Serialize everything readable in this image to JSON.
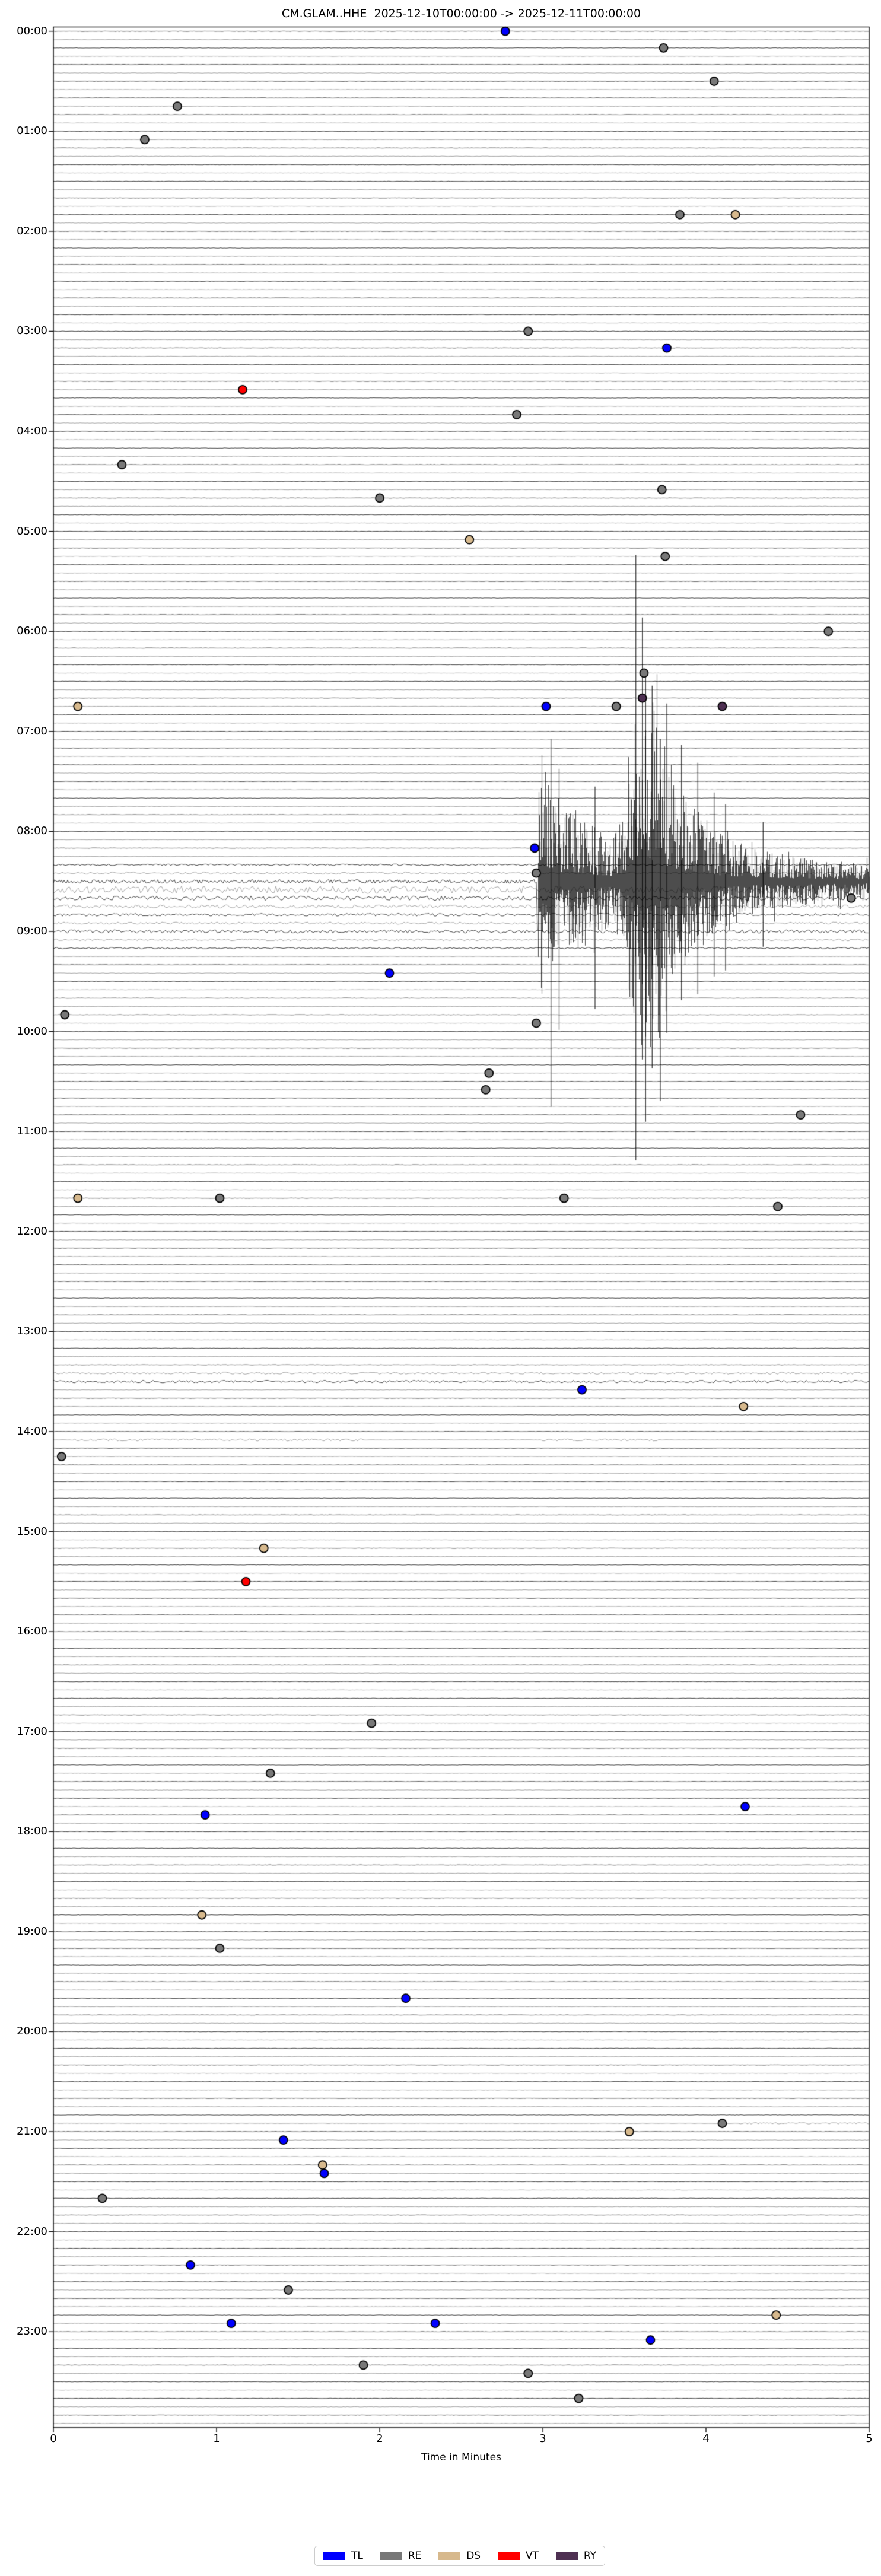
{
  "figure": {
    "title": "CM.GLAM..HHE  2025-12-10T00:00:00 -> 2025-12-11T00:00:00",
    "xlabel": "Time in Minutes"
  },
  "chart_data": {
    "type": "line",
    "subtype": "helicorder-seismogram-dayplot",
    "title": "CM.GLAM..HHE  2025-12-10T00:00:00 -> 2025-12-11T00:00:00",
    "xlabel": "Time in Minutes",
    "ylabel": "",
    "x_range": [
      0,
      5
    ],
    "minutes_per_row": 5,
    "rows": 288,
    "grid": false,
    "legend_position": "bottom-center",
    "x_ticks": [
      "0",
      "1",
      "2",
      "3",
      "4",
      "5"
    ],
    "y_ticks": [
      "00:00",
      "01:00",
      "02:00",
      "03:00",
      "04:00",
      "05:00",
      "06:00",
      "07:00",
      "08:00",
      "09:00",
      "10:00",
      "11:00",
      "12:00",
      "13:00",
      "14:00",
      "15:00",
      "16:00",
      "17:00",
      "18:00",
      "19:00",
      "20:00",
      "21:00",
      "22:00",
      "23:00"
    ],
    "legend": [
      {
        "label": "TL",
        "color": "#0000ff"
      },
      {
        "label": "RE",
        "color": "#787878"
      },
      {
        "label": "DS",
        "color": "#d7b98d"
      },
      {
        "label": "VT",
        "color": "#ff0000"
      },
      {
        "label": "RY",
        "color": "#4e3052"
      }
    ],
    "trace_color_dark": "#2f2f2f",
    "trace_color_light": "#8f8f8f",
    "events": [
      {
        "time": "00:00",
        "minute": 2.77,
        "type": "TL"
      },
      {
        "time": "00:10",
        "minute": 3.74,
        "type": "RE"
      },
      {
        "time": "00:30",
        "minute": 4.05,
        "type": "RE"
      },
      {
        "time": "00:45",
        "minute": 0.76,
        "type": "RE"
      },
      {
        "time": "01:05",
        "minute": 0.56,
        "type": "RE"
      },
      {
        "time": "01:50",
        "minute": 3.84,
        "type": "RE"
      },
      {
        "time": "01:50",
        "minute": 4.18,
        "type": "DS"
      },
      {
        "time": "03:00",
        "minute": 2.91,
        "type": "RE"
      },
      {
        "time": "03:10",
        "minute": 3.76,
        "type": "TL"
      },
      {
        "time": "03:35",
        "minute": 1.16,
        "type": "VT"
      },
      {
        "time": "03:50",
        "minute": 2.84,
        "type": "RE"
      },
      {
        "time": "04:20",
        "minute": 0.42,
        "type": "RE"
      },
      {
        "time": "04:35",
        "minute": 3.73,
        "type": "RE"
      },
      {
        "time": "04:40",
        "minute": 2.0,
        "type": "RE"
      },
      {
        "time": "05:05",
        "minute": 2.55,
        "type": "DS"
      },
      {
        "time": "05:15",
        "minute": 3.75,
        "type": "RE"
      },
      {
        "time": "06:00",
        "minute": 4.75,
        "type": "RE"
      },
      {
        "time": "06:25",
        "minute": 3.62,
        "type": "RE"
      },
      {
        "time": "06:40",
        "minute": 3.61,
        "type": "RY"
      },
      {
        "time": "06:45",
        "minute": 0.15,
        "type": "DS"
      },
      {
        "time": "06:45",
        "minute": 3.02,
        "type": "TL"
      },
      {
        "time": "06:45",
        "minute": 3.45,
        "type": "RE"
      },
      {
        "time": "06:45",
        "minute": 4.1,
        "type": "RY"
      },
      {
        "time": "08:10",
        "minute": 2.95,
        "type": "TL"
      },
      {
        "time": "08:25",
        "minute": 2.96,
        "type": "RE"
      },
      {
        "time": "08:40",
        "minute": 4.89,
        "type": "RE"
      },
      {
        "time": "09:25",
        "minute": 2.06,
        "type": "TL"
      },
      {
        "time": "09:50",
        "minute": 0.07,
        "type": "RE"
      },
      {
        "time": "09:55",
        "minute": 2.96,
        "type": "RE"
      },
      {
        "time": "10:25",
        "minute": 2.67,
        "type": "RE"
      },
      {
        "time": "10:35",
        "minute": 2.65,
        "type": "RE"
      },
      {
        "time": "10:50",
        "minute": 4.58,
        "type": "RE"
      },
      {
        "time": "11:40",
        "minute": 0.15,
        "type": "DS"
      },
      {
        "time": "11:40",
        "minute": 1.02,
        "type": "RE"
      },
      {
        "time": "11:40",
        "minute": 3.13,
        "type": "RE"
      },
      {
        "time": "11:45",
        "minute": 4.44,
        "type": "RE"
      },
      {
        "time": "13:35",
        "minute": 3.24,
        "type": "TL"
      },
      {
        "time": "13:45",
        "minute": 4.23,
        "type": "DS"
      },
      {
        "time": "14:15",
        "minute": 0.05,
        "type": "RE"
      },
      {
        "time": "15:10",
        "minute": 1.29,
        "type": "DS"
      },
      {
        "time": "15:30",
        "minute": 1.18,
        "type": "VT"
      },
      {
        "time": "16:55",
        "minute": 1.95,
        "type": "RE"
      },
      {
        "time": "17:25",
        "minute": 1.33,
        "type": "RE"
      },
      {
        "time": "17:45",
        "minute": 4.24,
        "type": "TL"
      },
      {
        "time": "17:50",
        "minute": 0.93,
        "type": "TL"
      },
      {
        "time": "18:50",
        "minute": 0.91,
        "type": "DS"
      },
      {
        "time": "19:10",
        "minute": 1.02,
        "type": "RE"
      },
      {
        "time": "19:40",
        "minute": 2.16,
        "type": "TL"
      },
      {
        "time": "20:55",
        "minute": 4.1,
        "type": "RE"
      },
      {
        "time": "21:00",
        "minute": 3.53,
        "type": "DS"
      },
      {
        "time": "21:05",
        "minute": 1.41,
        "type": "TL"
      },
      {
        "time": "21:20",
        "minute": 1.65,
        "type": "DS"
      },
      {
        "time": "21:25",
        "minute": 1.66,
        "type": "TL"
      },
      {
        "time": "21:40",
        "minute": 0.3,
        "type": "RE"
      },
      {
        "time": "22:20",
        "minute": 0.84,
        "type": "TL"
      },
      {
        "time": "22:35",
        "minute": 1.44,
        "type": "RE"
      },
      {
        "time": "22:50",
        "minute": 4.43,
        "type": "DS"
      },
      {
        "time": "22:55",
        "minute": 1.09,
        "type": "TL"
      },
      {
        "time": "22:55",
        "minute": 2.34,
        "type": "TL"
      },
      {
        "time": "23:05",
        "minute": 3.66,
        "type": "TL"
      },
      {
        "time": "23:20",
        "minute": 1.9,
        "type": "RE"
      },
      {
        "time": "23:25",
        "minute": 2.91,
        "type": "RE"
      },
      {
        "time": "23:40",
        "minute": 3.22,
        "type": "RE"
      }
    ],
    "main_event": {
      "row_time": "08:30",
      "onset_minute": 2.97,
      "envelope": [
        [
          0,
          3
        ],
        [
          2.9,
          3
        ],
        [
          2.96,
          4
        ],
        [
          2.98,
          230
        ],
        [
          3.05,
          150
        ],
        [
          3.1,
          110
        ],
        [
          3.2,
          130
        ],
        [
          3.3,
          95
        ],
        [
          3.42,
          75
        ],
        [
          3.5,
          110
        ],
        [
          3.58,
          330
        ],
        [
          3.68,
          300
        ],
        [
          3.8,
          180
        ],
        [
          3.95,
          120
        ],
        [
          4.1,
          80
        ],
        [
          4.3,
          55
        ],
        [
          4.6,
          40
        ],
        [
          5,
          28
        ]
      ],
      "tall_spikes": [
        [
          3.05,
          240,
          380
        ],
        [
          3.1,
          190,
          250
        ],
        [
          3.32,
          160,
          215
        ],
        [
          3.57,
          550,
          470
        ],
        [
          3.61,
          445,
          300
        ],
        [
          3.63,
          350,
          405
        ],
        [
          3.67,
          330,
          315
        ],
        [
          3.72,
          240,
          370
        ],
        [
          3.76,
          300,
          255
        ],
        [
          3.85,
          230,
          200
        ],
        [
          3.95,
          200,
          190
        ],
        [
          4.05,
          150,
          160
        ],
        [
          4.12,
          130,
          150
        ],
        [
          4.35,
          100,
          110
        ]
      ]
    },
    "noise_rows": [
      {
        "row": 100,
        "amp": 1.0,
        "from": 0,
        "to": 5
      },
      {
        "row": 101,
        "amp": 1.6,
        "from": 0,
        "to": 5
      },
      {
        "row": 103,
        "amp": 6.0,
        "from": 0,
        "to": 5
      },
      {
        "row": 104,
        "amp": 3.5,
        "from": 0,
        "to": 5
      },
      {
        "row": 105,
        "amp": 2.5,
        "from": 0,
        "to": 5
      },
      {
        "row": 106,
        "amp": 2.0,
        "from": 0,
        "to": 5
      },
      {
        "row": 107,
        "amp": 1.6,
        "from": 0,
        "to": 5
      },
      {
        "row": 108,
        "amp": 2.6,
        "from": 0,
        "to": 5
      },
      {
        "row": 109,
        "amp": 1.3,
        "from": 0,
        "to": 5
      },
      {
        "row": 110,
        "amp": 1.0,
        "from": 0,
        "to": 5
      },
      {
        "row": 161,
        "amp": 1.4,
        "from": 0,
        "to": 5
      },
      {
        "row": 162,
        "amp": 1.8,
        "from": 0,
        "to": 5
      },
      {
        "row": 169,
        "amp": 1.6,
        "from": 0.1,
        "to": 1.9
      },
      {
        "row": 169,
        "amp": 1.6,
        "from": 3.0,
        "to": 3.7
      },
      {
        "row": 251,
        "amp": 1.0,
        "from": 4.2,
        "to": 5.0
      }
    ],
    "layout": {
      "plot_left": 90,
      "plot_top": 45.5,
      "plot_right": 1465,
      "plot_bottom": 4092,
      "row0_y": 52.7,
      "row_dy": 14.049,
      "marker_radius": 7,
      "tick_len": 8
    }
  }
}
